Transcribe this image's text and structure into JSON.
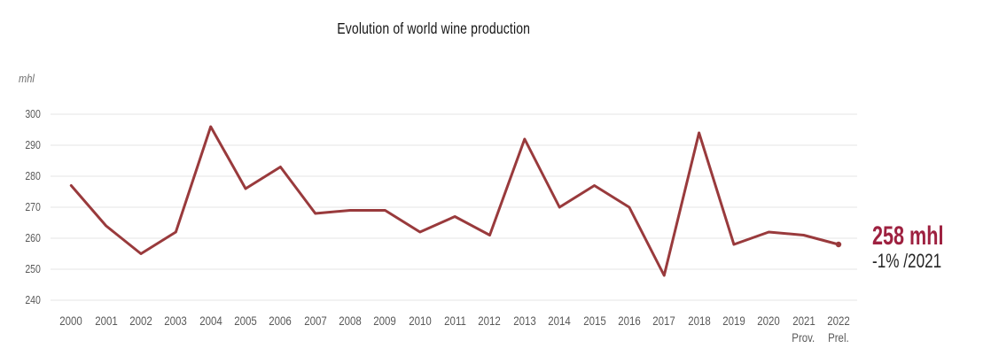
{
  "chart_data": {
    "type": "line",
    "title": "Evolution of world wine production",
    "ylabel": "mhl",
    "xlabel": "",
    "categories": [
      "2000",
      "2001",
      "2002",
      "2003",
      "2004",
      "2005",
      "2006",
      "2007",
      "2008",
      "2009",
      "2010",
      "2011",
      "2012",
      "2013",
      "2014",
      "2015",
      "2016",
      "2017",
      "2018",
      "2019",
      "2020",
      "2021",
      "2022"
    ],
    "category_notes": [
      "",
      "",
      "",
      "",
      "",
      "",
      "",
      "",
      "",
      "",
      "",
      "",
      "",
      "",
      "",
      "",
      "",
      "",
      "",
      "",
      "",
      "Prov.",
      "Prel."
    ],
    "values": [
      277,
      264,
      255,
      262,
      296,
      276,
      283,
      268,
      269,
      269,
      262,
      267,
      261,
      292,
      270,
      277,
      270,
      248,
      294,
      258,
      262,
      261,
      258
    ],
    "ylim": [
      240,
      300
    ],
    "yticks": [
      240,
      250,
      260,
      270,
      280,
      290,
      300
    ],
    "grid": "horizontal",
    "legend": "none",
    "end_marker": "dot"
  },
  "annotation": {
    "value": "258 mhl",
    "delta": "-1% /2021"
  },
  "colors": {
    "line": "#993A3C",
    "annotation_value": "#9E2140",
    "grid": "#E6E6E6",
    "tick_text": "#595959"
  }
}
